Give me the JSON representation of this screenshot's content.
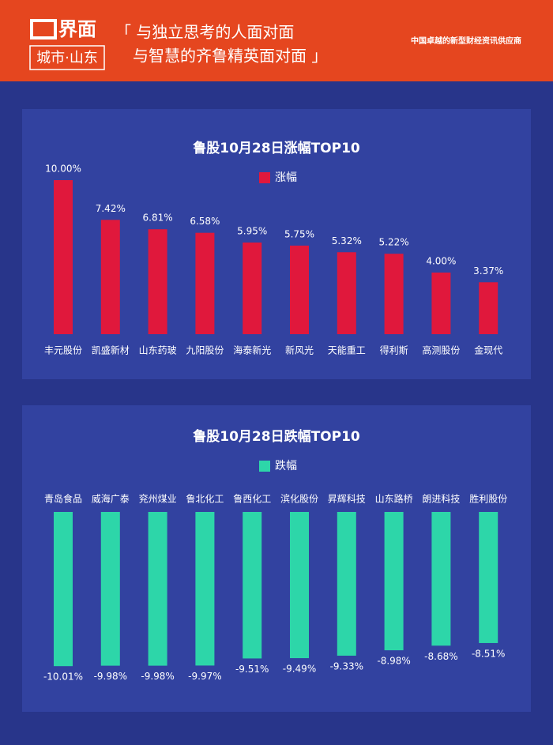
{
  "header": {
    "logo": "界面",
    "city": "城市·山东",
    "slogan_line1": "「 与独立思考的人面对面",
    "slogan_line2": "与智慧的齐鲁精英面对面 」",
    "tagline": "中国卓越的新型财经资讯供应商"
  },
  "chart_data": [
    {
      "type": "bar",
      "title": "鲁股10月28日涨幅TOP10",
      "categories": [
        "丰元股份",
        "凯盛新材",
        "山东药玻",
        "九阳股份",
        "海泰新光",
        "新风光",
        "天能重工",
        "得利斯",
        "高测股份",
        "金现代"
      ],
      "series": [
        {
          "name": "涨幅",
          "color": "#e0183c",
          "values": [
            10.0,
            7.42,
            6.81,
            6.58,
            5.95,
            5.75,
            5.32,
            5.22,
            4.0,
            3.37
          ],
          "value_labels": [
            "10.00%",
            "7.42%",
            "6.81%",
            "6.58%",
            "5.95%",
            "5.75%",
            "5.32%",
            "5.22%",
            "4.00%",
            "3.37%"
          ]
        }
      ]
    },
    {
      "type": "bar",
      "title": "鲁股10月28日跌幅TOP10",
      "categories": [
        "青岛食品",
        "威海广泰",
        "兖州煤业",
        "鲁北化工",
        "鲁西化工",
        "滨化股份",
        "昇辉科技",
        "山东路桥",
        "朗进科技",
        "胜利股份"
      ],
      "series": [
        {
          "name": "跌幅",
          "color": "#2dd6a9",
          "values": [
            -10.01,
            -9.98,
            -9.98,
            -9.97,
            -9.51,
            -9.49,
            -9.33,
            -8.98,
            -8.68,
            -8.51
          ],
          "value_labels": [
            "-10.01%",
            "-9.98%",
            "-9.98%",
            "-9.97%",
            "-9.51%",
            "-9.49%",
            "-9.33%",
            "-8.98%",
            "-8.68%",
            "-8.51%"
          ]
        }
      ]
    }
  ]
}
